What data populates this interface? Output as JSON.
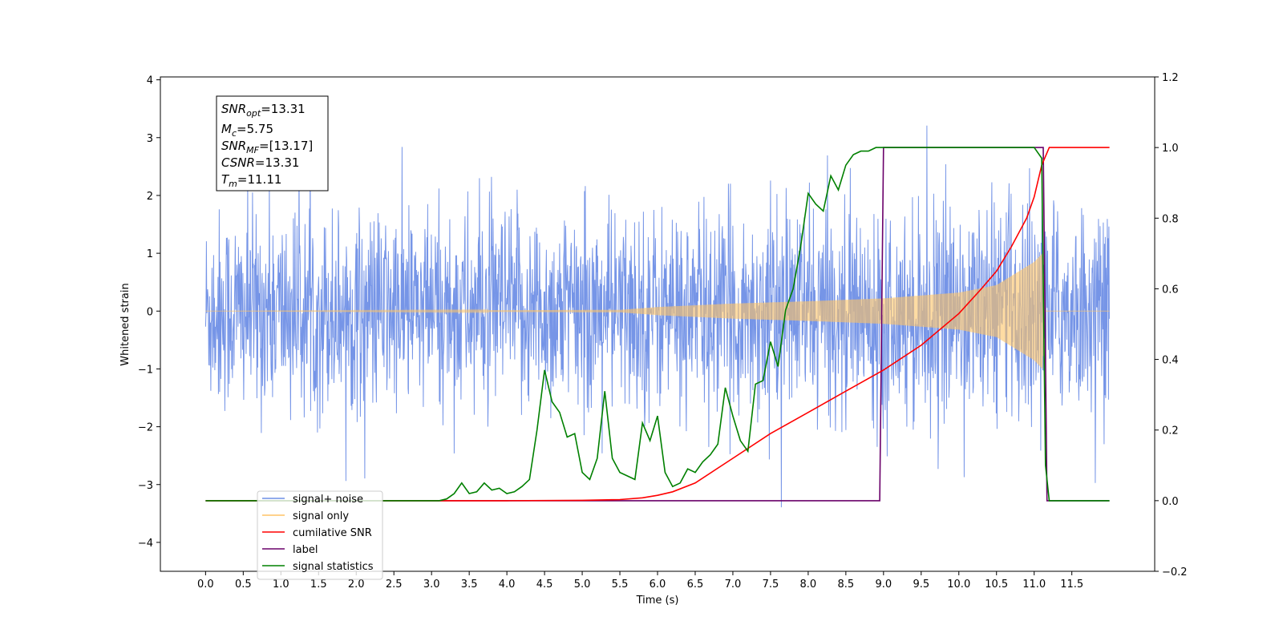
{
  "chart_data": {
    "type": "line",
    "xlabel": "Time (s)",
    "ylabel": "Whitened strain",
    "xlim": [
      -0.6,
      12.6
    ],
    "ylim": [
      -4.5,
      4.05
    ],
    "y2lim": [
      -0.2,
      1.2
    ],
    "x_ticks": [
      "0.0",
      "0.5",
      "1.0",
      "1.5",
      "2.0",
      "2.5",
      "3.0",
      "3.5",
      "4.0",
      "4.5",
      "5.0",
      "5.5",
      "6.0",
      "6.5",
      "7.0",
      "7.5",
      "8.0",
      "8.5",
      "9.0",
      "9.5",
      "10.0",
      "10.5",
      "11.0",
      "11.5"
    ],
    "y_ticks": [
      "−4",
      "−3",
      "−2",
      "−1",
      "0",
      "1",
      "2",
      "3",
      "4"
    ],
    "y2_ticks": [
      "−0.2",
      "0.0",
      "0.2",
      "0.4",
      "0.6",
      "0.8",
      "1.0",
      "1.2"
    ],
    "grid": false,
    "legend_position": "lower-left",
    "info_box": {
      "snr_opt": {
        "base": "SNR",
        "sub": "opt",
        "value": "=13.31"
      },
      "mc": {
        "base": "M",
        "sub": "c",
        "value": "=5.75"
      },
      "snr_mf": {
        "base": "SNR",
        "sub": "MF",
        "value": "=[13.17]"
      },
      "csnr": {
        "base": "CSNR",
        "value": "=13.31"
      },
      "tm": {
        "base": "T",
        "sub": "m",
        "value": "=11.11"
      }
    },
    "series": [
      {
        "name": "signal+ noise",
        "color": "#6f8fe6",
        "axis": "left",
        "x_range": [
          0.0,
          12.0
        ],
        "noise_amplitude": 1.4,
        "merger_time": 11.11
      },
      {
        "name": "signal only",
        "color": "#ffc466",
        "axis": "left",
        "x_range": [
          0.0,
          12.0
        ],
        "envelope": [
          [
            0.0,
            0.0
          ],
          [
            5.5,
            0.02
          ],
          [
            6.0,
            0.07
          ],
          [
            7.0,
            0.13
          ],
          [
            8.0,
            0.17
          ],
          [
            9.0,
            0.22
          ],
          [
            10.0,
            0.32
          ],
          [
            10.5,
            0.45
          ],
          [
            11.0,
            0.85
          ],
          [
            11.11,
            1.0
          ],
          [
            11.15,
            0.0
          ],
          [
            12.0,
            0.0
          ]
        ]
      },
      {
        "name": "cumilative SNR",
        "color": "#ff0000",
        "axis": "right",
        "x": [
          0.0,
          3.0,
          4.0,
          5.0,
          5.5,
          5.8,
          6.0,
          6.2,
          6.5,
          7.0,
          7.5,
          8.0,
          8.5,
          9.0,
          9.5,
          10.0,
          10.3,
          10.5,
          10.7,
          10.9,
          11.0,
          11.1,
          11.2,
          11.3,
          12.0
        ],
        "values": [
          0.0,
          0.0,
          0.0,
          0.001,
          0.003,
          0.008,
          0.015,
          0.025,
          0.05,
          0.12,
          0.19,
          0.25,
          0.31,
          0.37,
          0.44,
          0.53,
          0.6,
          0.65,
          0.72,
          0.8,
          0.86,
          0.95,
          1.0,
          1.0,
          1.0
        ]
      },
      {
        "name": "label",
        "color": "#6a006a",
        "axis": "right",
        "x": [
          0.0,
          8.95,
          9.0,
          11.12,
          11.17,
          12.0
        ],
        "values": [
          0.0,
          0.0,
          1.0,
          1.0,
          0.0,
          0.0
        ]
      },
      {
        "name": "signal statistics",
        "color": "#008000",
        "axis": "right",
        "x": [
          0.0,
          3.0,
          3.1,
          3.2,
          3.3,
          3.4,
          3.5,
          3.6,
          3.7,
          3.8,
          3.9,
          4.0,
          4.1,
          4.2,
          4.3,
          4.4,
          4.5,
          4.6,
          4.7,
          4.8,
          4.9,
          5.0,
          5.1,
          5.2,
          5.3,
          5.4,
          5.5,
          5.6,
          5.7,
          5.8,
          5.9,
          6.0,
          6.1,
          6.2,
          6.3,
          6.4,
          6.5,
          6.6,
          6.7,
          6.8,
          6.9,
          7.0,
          7.1,
          7.2,
          7.3,
          7.4,
          7.5,
          7.6,
          7.7,
          7.8,
          7.9,
          8.0,
          8.1,
          8.2,
          8.3,
          8.4,
          8.5,
          8.6,
          8.7,
          8.8,
          8.9,
          9.0,
          9.5,
          10.0,
          10.5,
          11.0,
          11.1,
          11.15,
          11.2,
          11.3,
          12.0
        ],
        "values": [
          0.0,
          0.0,
          0.0,
          0.005,
          0.02,
          0.05,
          0.02,
          0.025,
          0.05,
          0.03,
          0.035,
          0.02,
          0.025,
          0.04,
          0.06,
          0.2,
          0.37,
          0.28,
          0.25,
          0.18,
          0.19,
          0.08,
          0.06,
          0.12,
          0.31,
          0.12,
          0.08,
          0.07,
          0.06,
          0.22,
          0.17,
          0.24,
          0.08,
          0.04,
          0.05,
          0.09,
          0.08,
          0.11,
          0.13,
          0.16,
          0.32,
          0.24,
          0.17,
          0.14,
          0.33,
          0.34,
          0.45,
          0.38,
          0.54,
          0.6,
          0.72,
          0.87,
          0.84,
          0.82,
          0.92,
          0.88,
          0.95,
          0.98,
          0.99,
          0.99,
          1.0,
          1.0,
          1.0,
          1.0,
          1.0,
          1.0,
          0.97,
          0.1,
          0.0,
          0.0,
          0.0
        ]
      }
    ]
  }
}
